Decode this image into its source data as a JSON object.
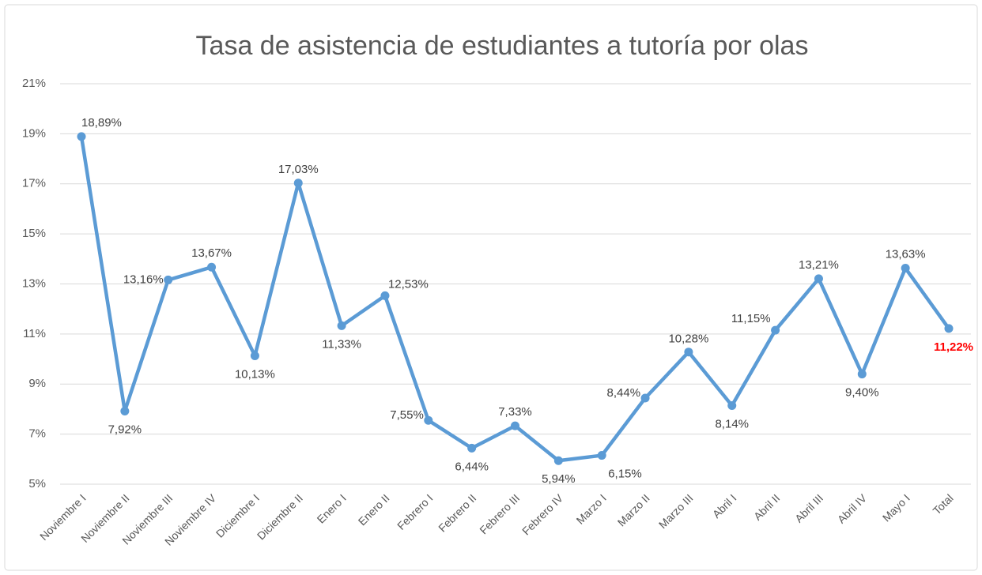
{
  "chart_data": {
    "type": "line",
    "title": "Tasa de asistencia de estudiantes a tutoría por olas",
    "categories": [
      "Noviembre I",
      "Noviembre II",
      "Noviembre III",
      "Noviembre IV",
      "Diciembre I",
      "Diciembre II",
      "Enero I",
      "Enero II",
      "Febrero I",
      "Febrero II",
      "Febrero III",
      "Febrero IV",
      "Marzo I",
      "Marzo II",
      "Marzo III",
      "Abril I",
      "Abril II",
      "Abril III",
      "Abril IV",
      "Mayo I",
      "Total"
    ],
    "series": [
      {
        "name": "Tasa de asistencia",
        "color": "#5b9bd5",
        "values": [
          18.89,
          7.92,
          13.16,
          13.67,
          10.13,
          17.03,
          11.33,
          12.53,
          7.55,
          6.44,
          7.33,
          5.94,
          6.15,
          8.44,
          10.28,
          8.14,
          11.15,
          13.21,
          9.4,
          13.63,
          11.22
        ],
        "value_labels": [
          "18,89%",
          "7,92%",
          "13,16%",
          "13,67%",
          "10,13%",
          "17,03%",
          "11,33%",
          "12,53%",
          "7,55%",
          "6,44%",
          "7,33%",
          "5,94%",
          "6,15%",
          "8,44%",
          "10,28%",
          "8,14%",
          "11,15%",
          "13,21%",
          "9,40%",
          "13,63%",
          "11,22%"
        ]
      }
    ],
    "ylim": [
      5,
      21
    ],
    "yticks": [
      {
        "value": 5,
        "label": "5%"
      },
      {
        "value": 7,
        "label": "7%"
      },
      {
        "value": 9,
        "label": "9%"
      },
      {
        "value": 11,
        "label": "11%"
      },
      {
        "value": 13,
        "label": "13%"
      },
      {
        "value": 15,
        "label": "15%"
      },
      {
        "value": 17,
        "label": "17%"
      },
      {
        "value": 19,
        "label": "19%"
      },
      {
        "value": 21,
        "label": "21%"
      }
    ],
    "grid": true
  }
}
